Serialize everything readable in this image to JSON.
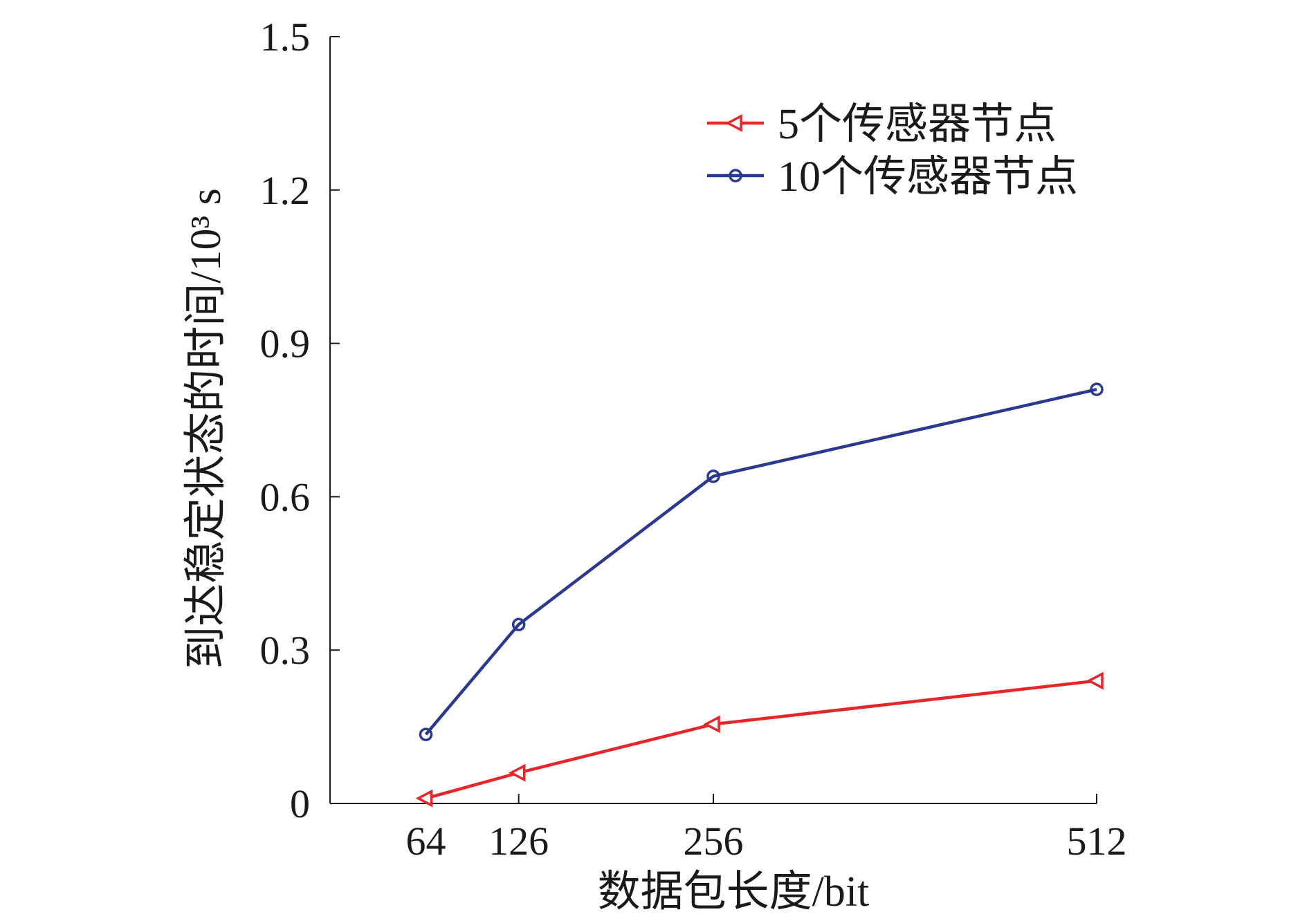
{
  "chart_data": {
    "type": "line",
    "title": "",
    "xlabel": "数据包长度/bit",
    "ylabel": "到达稳定状态的时间/10³ s",
    "x": [
      64,
      126,
      256,
      512
    ],
    "x_ticks": [
      64,
      126,
      256,
      512
    ],
    "x_tick_labels": [
      "64",
      "126",
      "256",
      "512"
    ],
    "xlim": [
      0,
      512
    ],
    "ylim": [
      0,
      1.5
    ],
    "y_ticks": [
      0,
      0.3,
      0.6,
      0.9,
      1.2,
      1.5
    ],
    "y_tick_labels": [
      "0",
      "0.3",
      "0.6",
      "0.9",
      "1.2",
      "1.5"
    ],
    "grid": false,
    "legend_position": "top-right",
    "series": [
      {
        "name": "5个传感器节点",
        "color": "#e8262a",
        "marker": "triangle-left",
        "values": [
          0.01,
          0.06,
          0.155,
          0.24
        ]
      },
      {
        "name": "10个传感器节点",
        "color": "#2b3990",
        "marker": "circle",
        "values": [
          0.135,
          0.35,
          0.64,
          0.81
        ]
      }
    ]
  }
}
